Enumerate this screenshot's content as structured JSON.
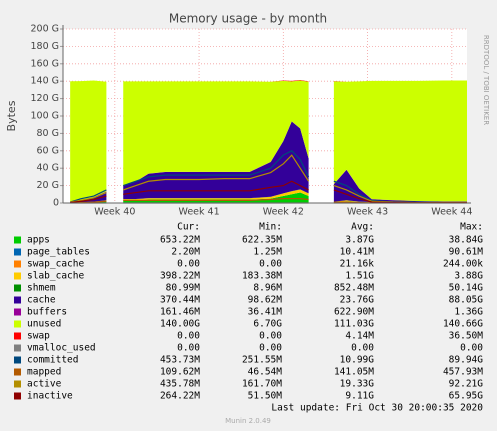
{
  "chart_data": {
    "type": "area",
    "title": "Memory usage - by month",
    "y_label": "Bytes",
    "side_note": "RRDTOOL / TOBI OETIKER",
    "footer": "Last update: Fri Oct 30 20:00:35 2020",
    "version": "Munin 2.0.49",
    "stat_headers": [
      "Cur:",
      "Min:",
      "Avg:",
      "Max:"
    ],
    "grid": true,
    "xlim": [
      39.385,
      44.18
    ],
    "ylim": [
      0,
      200
    ],
    "xticks": [
      {
        "value": 40,
        "label": "Week 40"
      },
      {
        "value": 41,
        "label": "Week 41"
      },
      {
        "value": 42,
        "label": "Week 42"
      },
      {
        "value": 43,
        "label": "Week 43"
      },
      {
        "value": 44,
        "label": "Week 44"
      }
    ],
    "yticks": [
      0,
      {
        "value": 20,
        "label": "20 G"
      },
      {
        "value": 40,
        "label": "40 G"
      },
      {
        "value": 60,
        "label": "60 G"
      },
      {
        "value": 80,
        "label": "80 G"
      },
      {
        "value": 100,
        "label": "100 G"
      },
      {
        "value": 120,
        "label": "120 G"
      },
      {
        "value": 140,
        "label": "140 G"
      },
      {
        "value": 160,
        "label": "160 G"
      },
      {
        "value": 180,
        "label": "180 G"
      },
      {
        "value": 200,
        "label": "200 G"
      }
    ],
    "x": [
      39.47,
      39.6,
      39.75,
      39.9,
      39.99,
      40.1,
      40.25,
      40.4,
      40.6,
      40.8,
      41.0,
      41.3,
      41.6,
      41.85,
      42.0,
      42.1,
      42.2,
      42.3,
      42.45,
      42.6,
      42.75,
      42.9,
      43.05,
      43.3,
      43.6,
      43.9,
      44.18
    ],
    "series": [
      {
        "name": "apps",
        "color": "#00cc00",
        "style": "area",
        "stats": [
          "653.22M",
          "622.35M",
          "3.87G",
          "38.84G"
        ],
        "values": [
          0.5,
          0.5,
          1,
          2,
          null,
          3,
          3,
          4,
          4,
          4,
          4,
          4,
          4,
          5,
          8,
          10,
          12,
          8,
          null,
          1,
          2,
          1,
          0.7,
          0.6,
          0.6,
          0.65,
          0.65
        ]
      },
      {
        "name": "page_tables",
        "color": "#0066b3",
        "style": "area",
        "stats": [
          "2.20M",
          "1.25M",
          "10.41M",
          "90.61M"
        ],
        "values": [
          0.01,
          0.01,
          0.01,
          0.01,
          null,
          0.01,
          0.01,
          0.01,
          0.01,
          0.01,
          0.01,
          0.01,
          0.01,
          0.01,
          0.01,
          0.01,
          0.01,
          0.01,
          null,
          0.01,
          0.01,
          0.01,
          0.01,
          0.01,
          0.01,
          0.01,
          0.01
        ]
      },
      {
        "name": "swap_cache",
        "color": "#ff8000",
        "style": "area",
        "stats": [
          "0.00",
          "0.00",
          "21.16k",
          "244.00k"
        ],
        "values": [
          0,
          0,
          0,
          0,
          null,
          0,
          0,
          0,
          0,
          0,
          0,
          0,
          0,
          0,
          0,
          0,
          0,
          0,
          null,
          0,
          0,
          0,
          0,
          0,
          0,
          0,
          0
        ]
      },
      {
        "name": "slab_cache",
        "color": "#ffcc00",
        "style": "area",
        "stats": [
          "398.22M",
          "183.38M",
          "1.51G",
          "3.88G"
        ],
        "values": [
          0.2,
          0.3,
          0.5,
          1,
          null,
          1.5,
          1.5,
          1.5,
          1.5,
          1.5,
          1.5,
          1.5,
          1.5,
          2,
          3,
          3.5,
          3.5,
          3,
          null,
          0.5,
          1,
          0.5,
          0.4,
          0.4,
          0.4,
          0.4,
          0.4
        ]
      },
      {
        "name": "shmem",
        "color": "#008f00",
        "style": "area",
        "stats": [
          "80.99M",
          "8.96M",
          "852.48M",
          "50.14G"
        ],
        "values": [
          0.1,
          0.1,
          0.1,
          0.1,
          null,
          0.1,
          0.1,
          0.1,
          0.1,
          0.1,
          0.1,
          0.1,
          0.1,
          0.1,
          0.1,
          0.1,
          0.1,
          0.1,
          null,
          0.1,
          0.1,
          0.1,
          0.1,
          0.1,
          0.1,
          0.1,
          0.1
        ]
      },
      {
        "name": "cache",
        "color": "#330099",
        "style": "area",
        "stats": [
          "370.44M",
          "98.62M",
          "23.76G",
          "88.05G"
        ],
        "values": [
          1,
          2,
          5,
          10,
          null,
          15,
          20,
          28,
          30,
          30,
          30,
          30,
          30,
          40,
          60,
          80,
          70,
          40,
          null,
          20,
          35,
          15,
          3,
          2,
          1,
          0.4,
          0.4
        ]
      },
      {
        "name": "buffers",
        "color": "#990099",
        "style": "area",
        "stats": [
          "161.46M",
          "36.41M",
          "622.90M",
          "1.36G"
        ],
        "values": [
          0.2,
          0.2,
          0.2,
          0.2,
          null,
          0.2,
          0.2,
          0.2,
          0.2,
          0.2,
          0.2,
          0.2,
          0.2,
          0.2,
          0.2,
          0.2,
          0.2,
          0.2,
          null,
          0.2,
          0.2,
          0.2,
          0.2,
          0.2,
          0.2,
          0.2,
          0.2
        ]
      },
      {
        "name": "unused",
        "color": "#ccff00",
        "style": "area",
        "stats": [
          "140.00G",
          "6.70G",
          "111.03G",
          "140.66G"
        ],
        "values": [
          138,
          137,
          134,
          126,
          null,
          120,
          115,
          106,
          104,
          104,
          104,
          104,
          104,
          92,
          69,
          46,
          55,
          88,
          null,
          118,
          101,
          123,
          136,
          137,
          138,
          139,
          139
        ]
      },
      {
        "name": "swap",
        "color": "#ff0000",
        "style": "area",
        "stats": [
          "0.00",
          "0.00",
          "4.14M",
          "36.50M"
        ],
        "values": [
          0,
          0,
          0,
          0,
          null,
          0,
          0,
          0,
          0,
          0,
          0,
          0,
          0,
          0,
          0.5,
          0.5,
          0.5,
          0.5,
          null,
          0.3,
          0,
          0,
          0,
          0,
          0,
          0,
          0
        ]
      },
      {
        "name": "vmalloc_used",
        "color": "#808080",
        "style": "line",
        "stats": [
          "0.00",
          "0.00",
          "0.00",
          "0.00"
        ],
        "values": [
          0,
          0,
          0,
          0,
          null,
          0,
          0,
          0,
          0,
          0,
          0,
          0,
          0,
          0,
          0,
          0,
          0,
          0,
          null,
          0,
          0,
          0,
          0,
          0,
          0,
          0,
          0
        ]
      },
      {
        "name": "committed",
        "color": "#00487d",
        "style": "line",
        "stats": [
          "453.73M",
          "251.55M",
          "10.99G",
          "89.94G"
        ],
        "values": [
          1,
          5,
          8,
          15,
          null,
          20,
          25,
          30,
          32,
          32,
          32,
          32,
          32,
          40,
          55,
          60,
          50,
          30,
          null,
          25,
          20,
          10,
          3,
          1,
          1,
          0.45,
          0.45
        ]
      },
      {
        "name": "mapped",
        "color": "#b35a00",
        "style": "line",
        "stats": [
          "109.62M",
          "46.54M",
          "141.05M",
          "457.93M"
        ],
        "values": [
          0.1,
          0.5,
          1,
          2,
          null,
          3,
          3,
          3,
          3,
          3,
          3,
          3,
          3,
          4,
          5,
          5,
          5,
          4,
          null,
          1,
          1,
          0.5,
          0.2,
          0.1,
          0.1,
          0.11,
          0.11
        ]
      },
      {
        "name": "active",
        "color": "#b38f00",
        "style": "line",
        "stats": [
          "435.78M",
          "161.70M",
          "19.33G",
          "92.21G"
        ],
        "values": [
          1,
          3,
          6,
          12,
          null,
          15,
          20,
          25,
          27,
          27,
          27,
          28,
          28,
          35,
          45,
          55,
          40,
          25,
          null,
          20,
          15,
          8,
          2,
          1,
          0.5,
          0.44,
          0.44
        ]
      },
      {
        "name": "inactive",
        "color": "#8f0000",
        "style": "line",
        "stats": [
          "264.22M",
          "51.50M",
          "9.11G",
          "65.95G"
        ],
        "values": [
          0.5,
          2,
          4,
          8,
          null,
          10,
          12,
          14,
          14,
          14,
          14,
          14,
          14,
          18,
          20,
          25,
          20,
          15,
          null,
          15,
          10,
          5,
          1,
          0.5,
          0.3,
          0.26,
          0.26
        ]
      }
    ]
  }
}
